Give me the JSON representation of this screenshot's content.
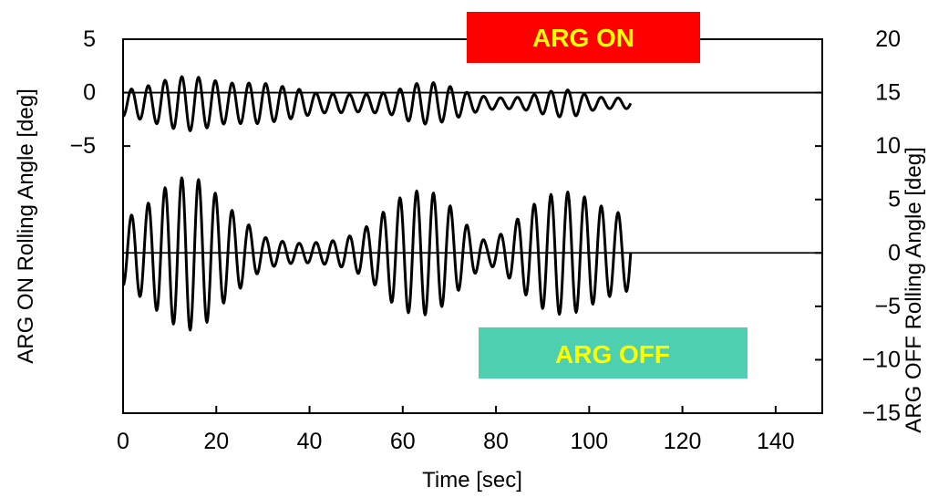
{
  "chart_data": {
    "type": "line",
    "xlabel": "Time [sec]",
    "ylabel_left": "ARG ON Rolling Angle [deg]",
    "ylabel_right": "ARG OFF Rolling Angle [deg]",
    "xlim": [
      0,
      150
    ],
    "x_ticks": [
      0,
      20,
      40,
      60,
      80,
      100,
      120,
      140
    ],
    "left_axis": {
      "ylim": [
        -30,
        5
      ],
      "ticks": [
        5,
        0,
        -5
      ]
    },
    "right_axis": {
      "ylim": [
        -15,
        20
      ],
      "ticks": [
        20,
        15,
        10,
        5,
        0,
        -5,
        -10,
        -15
      ]
    },
    "grid": false,
    "annotations": [
      {
        "text": "ARG ON",
        "background": "#ff0000",
        "color": "#ffff00"
      },
      {
        "text": "ARG OFF",
        "background": "#4ecfb0",
        "color": "#ffff00"
      }
    ],
    "series": [
      {
        "axis": "left",
        "color": "#000000",
        "period_sec": 3.6,
        "t_end": 109,
        "envelope": [
          [
            0,
            1.2
          ],
          [
            5,
            1.6
          ],
          [
            10,
            2.3
          ],
          [
            14,
            2.6
          ],
          [
            18,
            2.3
          ],
          [
            22,
            1.9
          ],
          [
            26,
            1.9
          ],
          [
            30,
            1.9
          ],
          [
            34,
            1.6
          ],
          [
            38,
            1.3
          ],
          [
            42,
            0.9
          ],
          [
            46,
            0.9
          ],
          [
            50,
            0.8
          ],
          [
            54,
            0.9
          ],
          [
            58,
            1.1
          ],
          [
            62,
            1.8
          ],
          [
            66,
            2.0
          ],
          [
            70,
            1.6
          ],
          [
            74,
            1.0
          ],
          [
            78,
            0.6
          ],
          [
            82,
            0.5
          ],
          [
            86,
            0.6
          ],
          [
            90,
            1.0
          ],
          [
            94,
            1.3
          ],
          [
            97,
            1.2
          ],
          [
            100,
            0.7
          ],
          [
            104,
            0.5
          ],
          [
            109,
            0.5
          ]
        ],
        "offset": -1.0
      },
      {
        "axis": "right",
        "color": "#000000",
        "period_sec": 3.6,
        "t_end": 109,
        "envelope": [
          [
            0,
            3.0
          ],
          [
            5,
            4.5
          ],
          [
            10,
            6.5
          ],
          [
            14,
            7.3
          ],
          [
            18,
            6.5
          ],
          [
            22,
            4.5
          ],
          [
            26,
            3.0
          ],
          [
            30,
            1.5
          ],
          [
            34,
            1.1
          ],
          [
            38,
            0.9
          ],
          [
            42,
            1.0
          ],
          [
            46,
            1.2
          ],
          [
            50,
            1.8
          ],
          [
            54,
            3.0
          ],
          [
            58,
            4.8
          ],
          [
            62,
            5.8
          ],
          [
            66,
            5.8
          ],
          [
            70,
            4.5
          ],
          [
            74,
            2.5
          ],
          [
            78,
            1.0
          ],
          [
            82,
            2.0
          ],
          [
            86,
            3.8
          ],
          [
            90,
            5.2
          ],
          [
            94,
            5.8
          ],
          [
            98,
            5.5
          ],
          [
            102,
            4.5
          ],
          [
            106,
            3.8
          ],
          [
            109,
            3.5
          ]
        ],
        "offset": 0
      }
    ]
  }
}
